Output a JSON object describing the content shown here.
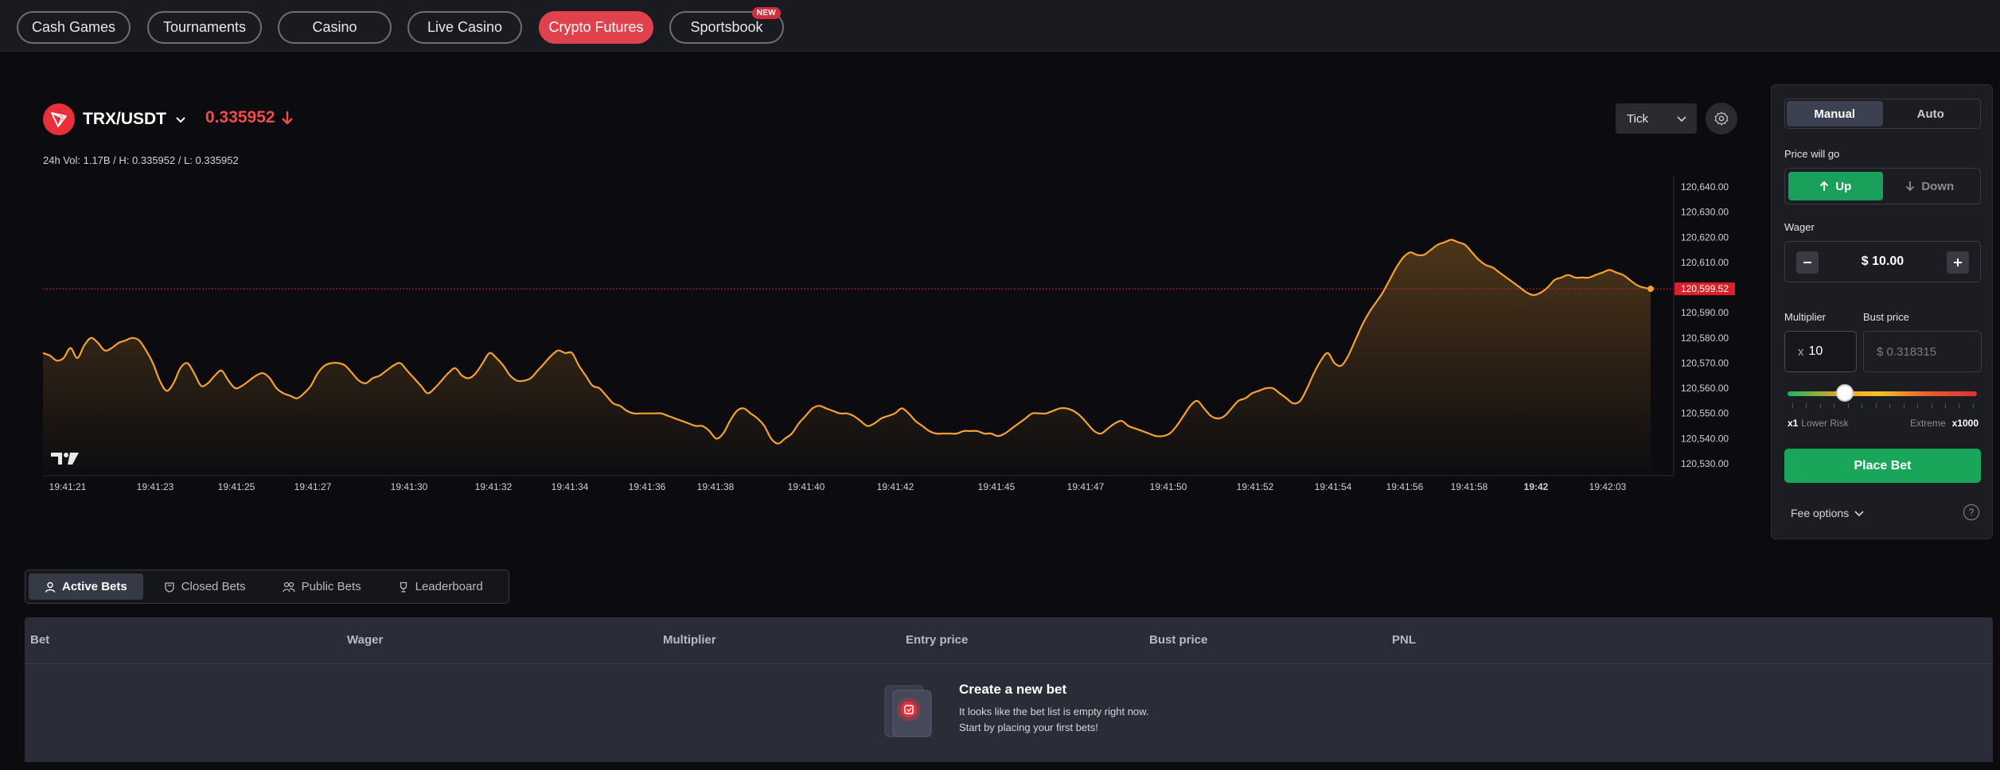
{
  "nav": {
    "items": [
      {
        "label": "Cash Games"
      },
      {
        "label": "Tournaments"
      },
      {
        "label": "Casino"
      },
      {
        "label": "Live Casino"
      },
      {
        "label": "Crypto Futures",
        "active": true
      },
      {
        "label": "Sportsbook",
        "badge": "NEW"
      }
    ]
  },
  "market": {
    "pair": "TRX/USDT",
    "price": "0.335952",
    "direction": "down",
    "stats": "24h Vol: 1.17B / H: 0.335952 / L: 0.335952",
    "interval": "Tick"
  },
  "chart_data": {
    "type": "area",
    "current_price_label": "120,599.52",
    "current_price": 120599.52,
    "ylim": [
      120530,
      120640
    ],
    "yticks": [
      "120,640.00",
      "120,630.00",
      "120,620.00",
      "120,610.00",
      "120,600.00",
      "120,590.00",
      "120,580.00",
      "120,570.00",
      "120,560.00",
      "120,550.00",
      "120,540.00",
      "120,530.00"
    ],
    "xticks": [
      "19:41:21",
      "19:41:23",
      "19:41:25",
      "19:41:27",
      "19:41:30",
      "19:41:32",
      "19:41:34",
      "19:41:36",
      "19:41:38",
      "19:41:40",
      "19:41:42",
      "19:41:45",
      "19:41:47",
      "19:41:50",
      "19:41:52",
      "19:41:54",
      "19:41:56",
      "19:41:58",
      "19:42",
      "19:42:03"
    ],
    "values": [
      120574,
      120573,
      120571,
      120572,
      120576,
      120572,
      120577,
      120580,
      120578,
      120575,
      120576,
      120578,
      120579,
      120580,
      120579,
      120575,
      120570,
      120563,
      120559,
      120562,
      120568,
      120570,
      120566,
      120561,
      120562,
      120565,
      120567,
      120563,
      120560,
      120561,
      120563,
      120565,
      120566,
      120564,
      120560,
      120558,
      120557,
      120556,
      120558,
      120561,
      120566,
      120569,
      120570,
      120570,
      120569,
      120566,
      120563,
      120562,
      120564,
      120565,
      120567,
      120569,
      120570,
      120567,
      120564,
      120561,
      120558,
      120560,
      120563,
      120566,
      120568,
      120565,
      120564,
      120566,
      120570,
      120574,
      120572,
      120569,
      120565,
      120563,
      120563,
      120564,
      120567,
      120570,
      120573,
      120575,
      120574,
      120574,
      120569,
      120565,
      120561,
      120560,
      120557,
      120554,
      120553,
      120551,
      120550,
      120550,
      120550,
      120550,
      120550,
      120549,
      120548,
      120547,
      120546,
      120545,
      120545,
      120543,
      120540,
      120542,
      120547,
      120551,
      120552,
      120550,
      120548,
      120545,
      120540,
      120538,
      120540,
      120542,
      120546,
      120549,
      120552,
      120553,
      120552,
      120551,
      120550,
      120550,
      120549,
      120547,
      120545,
      120546,
      120548,
      120549,
      120550,
      120552,
      120550,
      120547,
      120545,
      120543,
      120542,
      120542,
      120542,
      120542,
      120543,
      120543,
      120543,
      120542,
      120542,
      120541,
      120542,
      120544,
      120546,
      120548,
      120550,
      120550,
      120550,
      120551,
      120552,
      120552,
      120551,
      120549,
      120546,
      120543,
      120542,
      120544,
      120546,
      120547,
      120545,
      120544,
      120543,
      120542,
      120541,
      120541,
      120542,
      120545,
      120549,
      120553,
      120555,
      120552,
      120549,
      120548,
      120549,
      120552,
      120555,
      120556,
      120558,
      120559,
      120560,
      120560,
      120558,
      120556,
      120554,
      120555,
      120560,
      120566,
      120571,
      120574,
      120570,
      120569,
      120573,
      120579,
      120585,
      120590,
      120594,
      120598,
      120603,
      120608,
      120612,
      120614,
      120613,
      120613,
      120615,
      120617,
      120618,
      120619,
      120618,
      120617,
      120614,
      120611,
      120609,
      120608,
      120606,
      120604,
      120602,
      120600,
      120598,
      120597,
      120598,
      120600,
      120603,
      120604,
      120605,
      120604,
      120604,
      120604,
      120605,
      120606,
      120607,
      120606,
      120605,
      120603,
      120601,
      120600,
      120599.5
    ]
  },
  "bet": {
    "modes": [
      "Manual",
      "Auto"
    ],
    "active_mode": "Manual",
    "direction_label": "Price will go",
    "up_label": "Up",
    "down_label": "Down",
    "selected_direction": "Up",
    "wager_label": "Wager",
    "wager_value": "$ 10.00",
    "multiplier_label": "Multiplier",
    "multiplier_prefix": "x",
    "multiplier_value": "10",
    "bust_label": "Bust price",
    "bust_value": "$ 0.318315",
    "risk_min": "x1",
    "risk_min_label": "Lower Risk",
    "risk_max_label": "Extreme",
    "risk_max": "x1000",
    "slider_level": 0.3,
    "place_label": "Place Bet",
    "fee_label": "Fee options",
    "help_glyph": "?"
  },
  "bets": {
    "tabs": [
      "Active Bets",
      "Closed Bets",
      "Public Bets",
      "Leaderboard"
    ],
    "active_tab": "Active Bets",
    "columns": [
      "Bet",
      "Wager",
      "Multiplier",
      "Entry price",
      "Bust price",
      "PNL"
    ],
    "empty_title": "Create a new bet",
    "empty_line1": "It looks like the bet list is empty right now.",
    "empty_line2": "Start by placing your first bets!"
  },
  "colors": {
    "accent": "#e0424d",
    "line": "#f5a033",
    "price_down": "#f14b4b",
    "up": "#1aa05a",
    "price_marker": "#d9202c"
  }
}
